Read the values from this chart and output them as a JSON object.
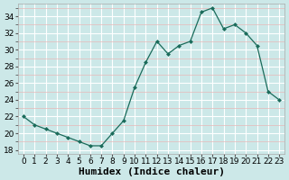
{
  "x": [
    0,
    1,
    2,
    3,
    4,
    5,
    6,
    7,
    8,
    9,
    10,
    11,
    12,
    13,
    14,
    15,
    16,
    17,
    18,
    19,
    20,
    21,
    22,
    23
  ],
  "y": [
    22,
    21,
    20.5,
    20,
    19.5,
    19,
    18.5,
    18.5,
    20,
    21.5,
    25.5,
    28.5,
    31,
    29.5,
    30.5,
    31,
    34.5,
    35,
    32.5,
    33,
    32,
    30.5,
    25,
    24
  ],
  "line_color": "#1a6b5a",
  "marker": "D",
  "marker_size": 2.5,
  "bg_color": "#cce8e8",
  "major_grid_color": "#ffffff",
  "minor_grid_color": "#e8b8b8",
  "xlabel": "Humidex (Indice chaleur)",
  "xlim": [
    -0.5,
    23.5
  ],
  "ylim": [
    17.5,
    35.5
  ],
  "yticks": [
    18,
    20,
    22,
    24,
    26,
    28,
    30,
    32,
    34
  ],
  "xticks": [
    0,
    1,
    2,
    3,
    4,
    5,
    6,
    7,
    8,
    9,
    10,
    11,
    12,
    13,
    14,
    15,
    16,
    17,
    18,
    19,
    20,
    21,
    22,
    23
  ],
  "xtick_labels": [
    "0",
    "1",
    "2",
    "3",
    "4",
    "5",
    "6",
    "7",
    "8",
    "9",
    "10",
    "11",
    "12",
    "13",
    "14",
    "15",
    "16",
    "17",
    "18",
    "19",
    "20",
    "21",
    "22",
    "23"
  ],
  "tick_color": "#000000",
  "xlabel_fontsize": 8,
  "tick_fontsize": 6.5,
  "spine_color": "#aaaaaa"
}
